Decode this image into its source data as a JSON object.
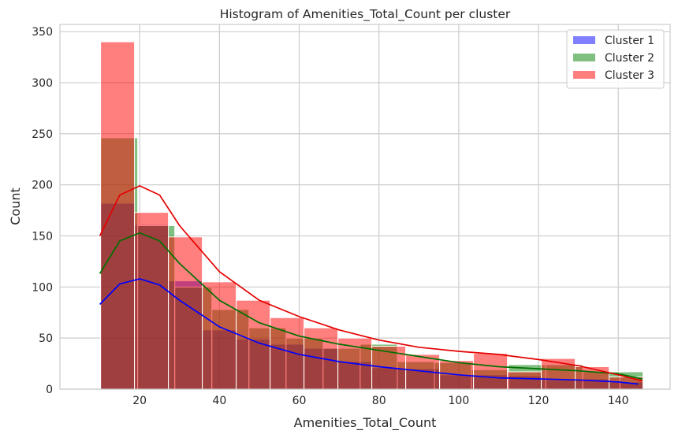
{
  "chart_data": {
    "type": "bar",
    "title": "Histogram of Amenities_Total_Count per cluster",
    "xlabel": "Amenities_Total_Count",
    "ylabel": "Count",
    "xlim": [
      0,
      153
    ],
    "ylim": [
      0,
      357
    ],
    "xticks": [
      20,
      40,
      60,
      80,
      100,
      120,
      140
    ],
    "yticks": [
      0,
      50,
      100,
      150,
      200,
      250,
      300,
      350
    ],
    "grid": true,
    "legend_position": "top-right",
    "series": [
      {
        "name": "Cluster 1",
        "color": "#0000ff",
        "kde_color": "#0000ff",
        "bins": [
          {
            "x0": 10.2,
            "x1": 18.7,
            "count": 182
          },
          {
            "x0": 18.7,
            "x1": 27.2,
            "count": 161
          },
          {
            "x0": 27.2,
            "x1": 35.7,
            "count": 106
          },
          {
            "x0": 35.7,
            "x1": 44.2,
            "count": 58
          },
          {
            "x0": 44.2,
            "x1": 52.7,
            "count": 49
          },
          {
            "x0": 52.7,
            "x1": 61.2,
            "count": 44
          },
          {
            "x0": 61.2,
            "x1": 69.7,
            "count": 40
          },
          {
            "x0": 69.7,
            "x1": 78.2,
            "count": 27
          },
          {
            "x0": 78.2,
            "x1": 86.7,
            "count": 21
          },
          {
            "x0": 86.7,
            "x1": 95.2,
            "count": 20
          },
          {
            "x0": 95.2,
            "x1": 103.7,
            "count": 14
          },
          {
            "x0": 103.7,
            "x1": 112.2,
            "count": 14
          },
          {
            "x0": 112.2,
            "x1": 120.7,
            "count": 13
          },
          {
            "x0": 120.7,
            "x1": 129.2,
            "count": 9
          },
          {
            "x0": 129.2,
            "x1": 137.7,
            "count": 10
          },
          {
            "x0": 137.7,
            "x1": 146.2,
            "count": 7
          }
        ],
        "kde": [
          [
            10,
            83
          ],
          [
            15,
            103
          ],
          [
            20,
            108
          ],
          [
            25,
            102
          ],
          [
            30,
            87
          ],
          [
            40,
            61
          ],
          [
            50,
            45
          ],
          [
            60,
            34
          ],
          [
            70,
            27
          ],
          [
            80,
            22
          ],
          [
            90,
            18
          ],
          [
            100,
            14
          ],
          [
            110,
            11
          ],
          [
            120,
            10
          ],
          [
            130,
            9
          ],
          [
            140,
            7
          ],
          [
            145,
            5
          ]
        ]
      },
      {
        "name": "Cluster 2",
        "color": "#008000",
        "kde_color": "#007000",
        "bins": [
          {
            "x0": 10.2,
            "x1": 19.5,
            "count": 246
          },
          {
            "x0": 19.5,
            "x1": 28.8,
            "count": 160
          },
          {
            "x0": 28.8,
            "x1": 38.1,
            "count": 100
          },
          {
            "x0": 38.1,
            "x1": 47.4,
            "count": 78
          },
          {
            "x0": 47.4,
            "x1": 56.7,
            "count": 60
          },
          {
            "x0": 56.7,
            "x1": 66.0,
            "count": 50
          },
          {
            "x0": 66.0,
            "x1": 75.3,
            "count": 40
          },
          {
            "x0": 75.3,
            "x1": 84.6,
            "count": 44
          },
          {
            "x0": 84.6,
            "x1": 93.9,
            "count": 27
          },
          {
            "x0": 93.9,
            "x1": 103.2,
            "count": 26
          },
          {
            "x0": 103.2,
            "x1": 112.5,
            "count": 19
          },
          {
            "x0": 112.5,
            "x1": 121.8,
            "count": 24
          },
          {
            "x0": 121.8,
            "x1": 131.1,
            "count": 24
          },
          {
            "x0": 131.1,
            "x1": 140.4,
            "count": 17
          },
          {
            "x0": 140.4,
            "x1": 146.2,
            "count": 17
          }
        ],
        "kde": [
          [
            10,
            113
          ],
          [
            15,
            145
          ],
          [
            20,
            153
          ],
          [
            25,
            145
          ],
          [
            30,
            123
          ],
          [
            40,
            87
          ],
          [
            50,
            65
          ],
          [
            60,
            52
          ],
          [
            70,
            44
          ],
          [
            80,
            38
          ],
          [
            90,
            32
          ],
          [
            100,
            26
          ],
          [
            110,
            22
          ],
          [
            120,
            20
          ],
          [
            130,
            18
          ],
          [
            140,
            15
          ],
          [
            146,
            10
          ]
        ]
      },
      {
        "name": "Cluster 3",
        "color": "#ff0000",
        "kde_color": "#e60000",
        "bins": [
          {
            "x0": 10.2,
            "x1": 18.7,
            "count": 340
          },
          {
            "x0": 18.7,
            "x1": 27.2,
            "count": 173
          },
          {
            "x0": 27.2,
            "x1": 35.7,
            "count": 149
          },
          {
            "x0": 35.7,
            "x1": 44.2,
            "count": 105
          },
          {
            "x0": 44.2,
            "x1": 52.7,
            "count": 87
          },
          {
            "x0": 52.7,
            "x1": 61.2,
            "count": 70
          },
          {
            "x0": 61.2,
            "x1": 69.7,
            "count": 60
          },
          {
            "x0": 69.7,
            "x1": 78.2,
            "count": 50
          },
          {
            "x0": 78.2,
            "x1": 86.7,
            "count": 42
          },
          {
            "x0": 86.7,
            "x1": 95.2,
            "count": 34
          },
          {
            "x0": 95.2,
            "x1": 103.7,
            "count": 28
          },
          {
            "x0": 103.7,
            "x1": 112.2,
            "count": 35
          },
          {
            "x0": 112.2,
            "x1": 120.7,
            "count": 17
          },
          {
            "x0": 120.7,
            "x1": 129.2,
            "count": 30
          },
          {
            "x0": 129.2,
            "x1": 137.7,
            "count": 22
          },
          {
            "x0": 137.7,
            "x1": 146.2,
            "count": 12
          }
        ],
        "kde": [
          [
            10,
            150
          ],
          [
            15,
            190
          ],
          [
            20,
            199
          ],
          [
            25,
            190
          ],
          [
            30,
            160
          ],
          [
            40,
            115
          ],
          [
            50,
            87
          ],
          [
            60,
            71
          ],
          [
            70,
            58
          ],
          [
            80,
            48
          ],
          [
            90,
            41
          ],
          [
            100,
            37
          ],
          [
            110,
            34
          ],
          [
            120,
            29
          ],
          [
            130,
            23
          ],
          [
            140,
            14
          ],
          [
            146,
            8
          ]
        ]
      }
    ]
  }
}
